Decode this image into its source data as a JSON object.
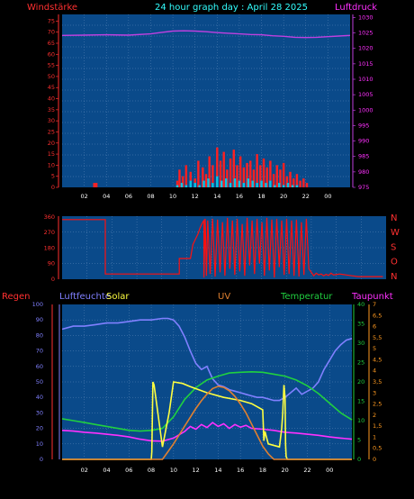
{
  "colors": {
    "bg": "#000000",
    "plot": "#0a4a8a",
    "grid": "#5a86b8",
    "wind": "#ff2020",
    "gust_fill": "#00c8e8",
    "pressure": "#c040e0",
    "direction": "#ff1010",
    "humidity": "#8080ff",
    "solar": "#ffff40",
    "uv": "#e08030",
    "temperature": "#20d040",
    "dewpoint": "#ff30ff",
    "rain": "#ff2020",
    "orange_axis": "#ff9a20",
    "title": "#33ffff",
    "axis_red": "#ff3030",
    "axis_magenta": "#ff30ff"
  },
  "chart_data": [
    {
      "type": "line",
      "title": "24 hour graph day : April 28 2025",
      "left_label": "Windstärke",
      "right_label": "Luftdruck",
      "x_ticks": [
        "02",
        "04",
        "06",
        "08",
        "10",
        "12",
        "14",
        "16",
        "18",
        "20",
        "22",
        "00"
      ],
      "y_left_ticks": [
        0,
        5,
        10,
        15,
        20,
        25,
        30,
        35,
        40,
        45,
        50,
        55,
        60,
        65,
        70,
        75
      ],
      "y_left_range": [
        0,
        78
      ],
      "y_right_ticks": [
        975,
        980,
        985,
        990,
        995,
        1000,
        1005,
        1010,
        1015,
        1020,
        1025,
        1030
      ],
      "y_right_range": [
        975,
        1031
      ],
      "x_range": [
        0,
        26
      ],
      "series": [
        {
          "key": "pressure",
          "axis": "right",
          "x": [
            0,
            2,
            4,
            6,
            8,
            9,
            10,
            11,
            12,
            13,
            14,
            15,
            16,
            17,
            18,
            19,
            20,
            21,
            22,
            23,
            24,
            25,
            26
          ],
          "y": [
            1024.2,
            1024.3,
            1024.4,
            1024.3,
            1024.7,
            1025.2,
            1025.6,
            1025.7,
            1025.6,
            1025.4,
            1025.1,
            1024.9,
            1024.7,
            1024.5,
            1024.4,
            1024.1,
            1023.9,
            1023.6,
            1023.5,
            1023.6,
            1023.8,
            1024.0,
            1024.2
          ]
        },
        {
          "key": "wind_gust",
          "axis": "left",
          "x": [
            2.9,
            3.1,
            10.4,
            10.6,
            10.9,
            11.2,
            11.6,
            12.0,
            12.3,
            12.7,
            13.0,
            13.3,
            13.6,
            14.0,
            14.3,
            14.6,
            14.9,
            15.2,
            15.5,
            15.8,
            16.1,
            16.4,
            16.7,
            17.0,
            17.3,
            17.6,
            17.9,
            18.2,
            18.5,
            18.8,
            19.1,
            19.4,
            19.7,
            20.0,
            20.3,
            20.6,
            20.9,
            21.2,
            21.5,
            21.8,
            22.1
          ],
          "y": [
            2,
            2,
            3,
            8,
            5,
            10,
            7,
            4,
            12,
            9,
            6,
            14,
            10,
            18,
            12,
            16,
            8,
            13,
            17,
            10,
            14,
            9,
            11,
            12,
            8,
            15,
            10,
            13,
            9,
            12,
            6,
            10,
            8,
            11,
            5,
            7,
            4,
            6,
            3,
            4,
            2
          ]
        },
        {
          "key": "wind_avg",
          "axis": "left",
          "x": [
            10.4,
            10.8,
            11.2,
            11.6,
            12.0,
            12.4,
            12.8,
            13.2,
            13.6,
            14.0,
            14.4,
            14.8,
            15.2,
            15.6,
            16.0,
            16.4,
            16.8,
            17.2,
            17.6,
            18.0,
            18.4,
            18.8,
            19.2,
            19.6,
            20.0,
            20.4,
            20.8,
            21.2
          ],
          "y": [
            1,
            2,
            1,
            3,
            2,
            1,
            3,
            4,
            2,
            5,
            3,
            4,
            2,
            4,
            3,
            2,
            4,
            3,
            2,
            3,
            2,
            3,
            1,
            2,
            1,
            2,
            1,
            1
          ]
        }
      ]
    },
    {
      "type": "line",
      "title": "",
      "y_ticks": [
        0,
        90,
        180,
        270,
        360
      ],
      "y_range": [
        0,
        365
      ],
      "right_labels": [
        "N",
        "W",
        "S",
        "O",
        "N"
      ],
      "x_range": [
        0,
        26
      ],
      "series": [
        {
          "key": "direction",
          "x": [
            0,
            3.5,
            3.5,
            9.5,
            9.5,
            10.4,
            10.6,
            10.8,
            11.0,
            11.2,
            11.4,
            11.5,
            11.5,
            11.6,
            11.7,
            11.8,
            12.0,
            12.2,
            12.4,
            12.6,
            12.8,
            13.0,
            13.2,
            13.4,
            13.6,
            13.8,
            14.0,
            14.2,
            14.4,
            14.6,
            14.8,
            15.0,
            15.2,
            15.4,
            15.6,
            15.8,
            16.0,
            16.2,
            16.4,
            16.6,
            16.8,
            17.0,
            17.2,
            17.4,
            17.6,
            17.8,
            18.0,
            18.2,
            18.4,
            18.6,
            18.8,
            19.0,
            19.2,
            19.4,
            19.6,
            19.8,
            20.0,
            20.2,
            20.4,
            20.6,
            20.8,
            21.0,
            21.2,
            21.4,
            21.6,
            21.8,
            22.0,
            22.5,
            23.0,
            23.5,
            24.0,
            25.0,
            26.0
          ],
          "y": [
            345,
            345,
            30,
            30,
            120,
            120,
            200,
            230,
            260,
            300,
            330,
            340,
            10,
            350,
            20,
            340,
            30,
            350,
            15,
            345,
            40,
            330,
            20,
            355,
            60,
            340,
            25,
            350,
            45,
            320,
            20,
            355,
            80,
            340,
            30,
            350,
            90,
            330,
            20,
            355,
            50,
            345,
            10,
            350,
            70,
            340,
            25,
            350,
            30,
            340,
            20,
            345,
            15,
            330,
            25,
            350,
            60,
            40,
            20,
            35,
            25,
            30,
            20,
            28,
            22,
            35,
            25,
            30,
            25,
            20,
            15,
            15,
            15
          ]
        }
      ]
    },
    {
      "type": "line",
      "title": "",
      "labels": [
        "Regen",
        "Luftfeuchte",
        "Solar",
        "UV",
        "Temperatur",
        "Taupunkt"
      ],
      "y_hum_ticks": [
        0,
        10,
        20,
        30,
        40,
        50,
        60,
        70,
        80,
        90,
        100
      ],
      "y_hum_range": [
        0,
        100
      ],
      "y_temp_ticks": [
        0,
        5,
        10,
        15,
        20,
        25,
        30,
        35,
        40
      ],
      "y_temp_range": [
        0,
        40
      ],
      "y_uv_ticks": [
        "0",
        "0,5",
        "1",
        "1,5",
        "2",
        "2,5",
        "3",
        "3,5",
        "4",
        "4,5",
        "5",
        "5,5",
        "6",
        "6,5",
        "7"
      ],
      "y_uv_range": [
        0,
        7
      ],
      "x_range": [
        0,
        26
      ],
      "series": [
        {
          "key": "humidity",
          "axis": "hum",
          "x": [
            0,
            1,
            2,
            3,
            4,
            5,
            6,
            7,
            8,
            9,
            9.5,
            10,
            10.5,
            11,
            11.5,
            12,
            12.5,
            13,
            13.5,
            14,
            14.5,
            15,
            15.5,
            16,
            16.5,
            17,
            17.5,
            18,
            18.5,
            19,
            19.5,
            20,
            20.5,
            21,
            21.5,
            22,
            22.5,
            23,
            23.5,
            24,
            24.5,
            25,
            25.5,
            26
          ],
          "y": [
            84,
            86,
            86,
            87,
            88,
            88,
            89,
            90,
            90,
            91,
            91,
            90,
            86,
            79,
            70,
            62,
            58,
            60,
            52,
            48,
            47,
            45,
            44,
            43,
            42,
            41,
            40,
            40,
            39,
            38,
            38,
            40,
            43,
            46,
            42,
            44,
            46,
            50,
            58,
            64,
            70,
            74,
            77,
            78
          ]
        },
        {
          "key": "temperature",
          "axis": "temp",
          "x": [
            0,
            1,
            2,
            3,
            4,
            5,
            6,
            7,
            8,
            9,
            10,
            11,
            12,
            13,
            14,
            15,
            16,
            17,
            18,
            19,
            20,
            21,
            22,
            23,
            24,
            25,
            26
          ],
          "y": [
            10.5,
            10,
            9.5,
            9,
            8.5,
            8,
            7.5,
            7.3,
            7.5,
            8,
            11,
            15.5,
            18.5,
            20.5,
            21.5,
            22.3,
            22.5,
            22.6,
            22.5,
            22,
            21.5,
            20.5,
            19,
            17,
            14.5,
            12,
            10.2
          ]
        },
        {
          "key": "dewpoint",
          "axis": "temp",
          "x": [
            0,
            1,
            2,
            3,
            4,
            5,
            6,
            7,
            8,
            9,
            10,
            11,
            11.5,
            12,
            12.5,
            13,
            13.5,
            14,
            14.5,
            15,
            15.5,
            16,
            16.5,
            17,
            18,
            19,
            20,
            21,
            22,
            23,
            24,
            25,
            26
          ],
          "y": [
            7.5,
            7.3,
            7,
            6.8,
            6.5,
            6.2,
            5.8,
            5.2,
            4.8,
            4.7,
            5.5,
            7.2,
            8.5,
            7.8,
            9,
            8.2,
            9.5,
            8.5,
            9.2,
            8,
            9,
            8.3,
            8.8,
            8,
            7.8,
            7.5,
            7,
            6.8,
            6.5,
            6.2,
            5.8,
            5.5,
            5.2
          ]
        },
        {
          "key": "solar",
          "axis": "hum",
          "x": [
            0,
            8,
            8.05,
            8.15,
            8.25,
            9,
            9.6,
            10,
            10.8,
            11.5,
            13,
            14.5,
            16,
            17,
            18,
            18.1,
            18.2,
            18.5,
            19.5,
            19.7,
            19.8,
            19.9,
            20.0,
            20.05,
            20.1,
            20.2,
            26
          ],
          "y": [
            0,
            0,
            5,
            50,
            48,
            8,
            30,
            50,
            49,
            47,
            43,
            40,
            38,
            36,
            32,
            12,
            18,
            10,
            8,
            20,
            30,
            48,
            40,
            10,
            2,
            0,
            0
          ]
        },
        {
          "key": "uv",
          "axis": "uv",
          "x": [
            0,
            9,
            9.5,
            10,
            10.5,
            11,
            11.5,
            12,
            12.5,
            13,
            13.5,
            14,
            14.5,
            15,
            15.5,
            16,
            16.5,
            17,
            17.5,
            18,
            18.5,
            19,
            26
          ],
          "y": [
            0,
            0,
            0.35,
            0.7,
            1.1,
            1.5,
            1.9,
            2.3,
            2.65,
            2.95,
            3.2,
            3.3,
            3.25,
            3.1,
            2.85,
            2.5,
            2.1,
            1.6,
            1.1,
            0.6,
            0.25,
            0,
            0
          ]
        }
      ]
    }
  ],
  "x_ticks_bottom": [
    "02",
    "04",
    "06",
    "08",
    "10",
    "12",
    "14",
    "16",
    "18",
    "20",
    "22",
    "00"
  ]
}
